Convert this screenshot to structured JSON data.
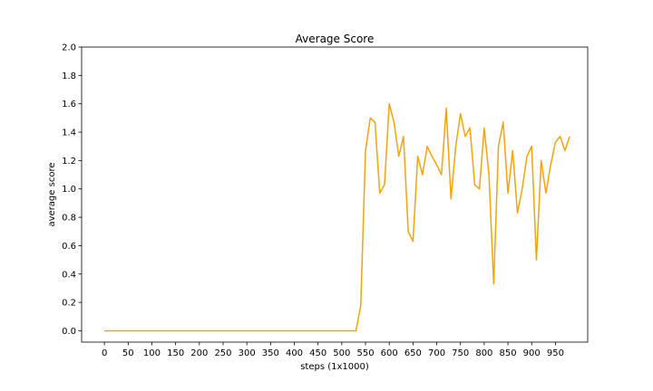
{
  "chart_data": {
    "type": "line",
    "title": "Average Score",
    "xlabel": "steps (1x1000)",
    "ylabel": "average score",
    "xlim": [
      -48,
      1018
    ],
    "ylim": [
      -0.08,
      2.0
    ],
    "xticks": [
      0,
      50,
      100,
      150,
      200,
      250,
      300,
      350,
      400,
      450,
      500,
      550,
      600,
      650,
      700,
      750,
      800,
      850,
      900,
      950
    ],
    "yticks": [
      0.0,
      0.2,
      0.4,
      0.6,
      0.8,
      1.0,
      1.2,
      1.4,
      1.6,
      1.8,
      2.0
    ],
    "ytick_labels": [
      "0.0",
      "0.2",
      "0.4",
      "0.6",
      "0.8",
      "1.0",
      "1.2",
      "1.4",
      "1.6",
      "1.8",
      "2.0"
    ],
    "grid": false,
    "series": [
      {
        "color": "#f5a30a",
        "x": [
          0,
          530,
          540,
          550,
          560,
          570,
          580,
          590,
          600,
          610,
          620,
          630,
          640,
          650,
          660,
          670,
          680,
          690,
          700,
          710,
          720,
          730,
          740,
          750,
          760,
          770,
          780,
          790,
          800,
          810,
          820,
          830,
          840,
          850,
          860,
          870,
          880,
          890,
          900,
          910,
          920,
          930,
          940,
          950,
          960,
          970,
          980
        ],
        "y": [
          0.0,
          0.0,
          0.18,
          1.27,
          1.5,
          1.47,
          0.97,
          1.03,
          1.6,
          1.47,
          1.23,
          1.37,
          0.7,
          0.63,
          1.23,
          1.1,
          1.3,
          1.23,
          1.17,
          1.1,
          1.57,
          0.93,
          1.3,
          1.53,
          1.37,
          1.43,
          1.03,
          1.0,
          1.43,
          1.1,
          0.33,
          1.3,
          1.47,
          0.97,
          1.27,
          0.83,
          1.0,
          1.23,
          1.3,
          0.5,
          1.2,
          0.97,
          1.17,
          1.33,
          1.37,
          1.27,
          1.37
        ]
      }
    ]
  }
}
